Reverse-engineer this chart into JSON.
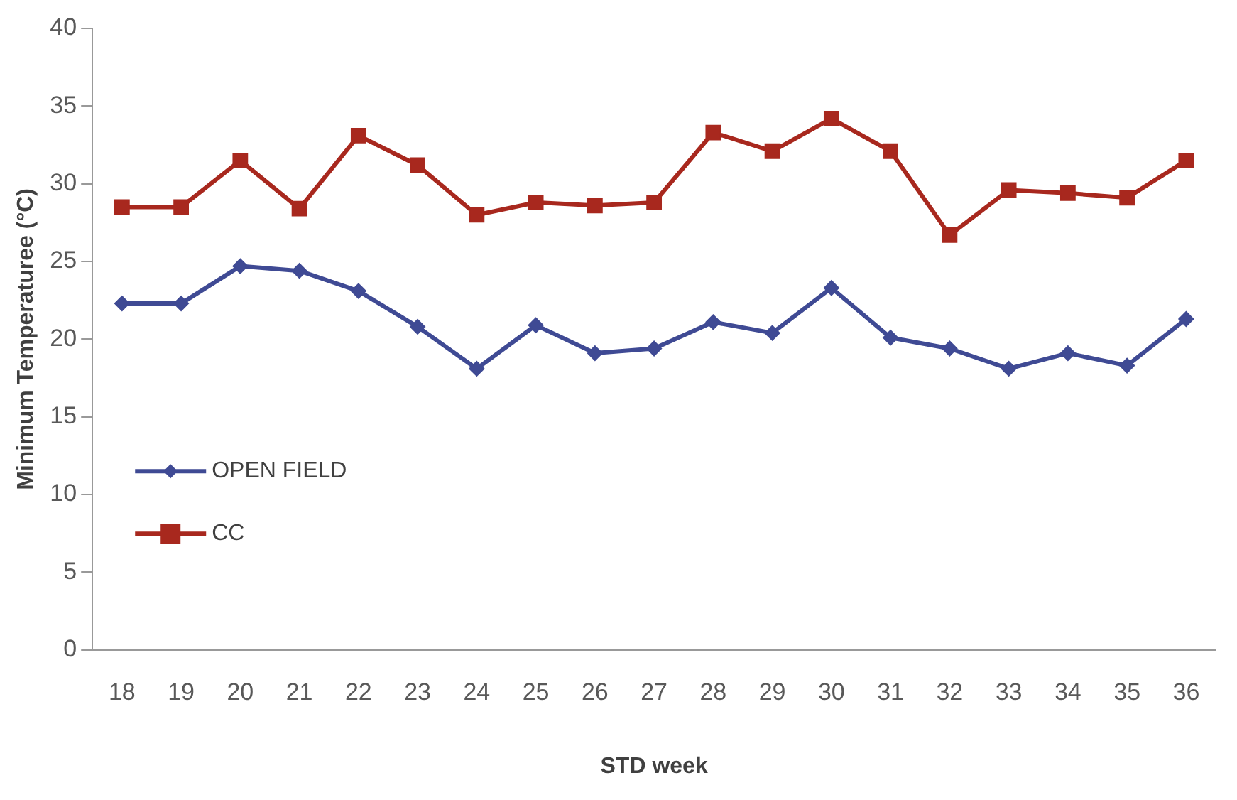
{
  "chart_data": {
    "type": "line",
    "xlabel": "STD week",
    "ylabel": "Minimum Temperaturee (°C)",
    "categories": [
      "18",
      "19",
      "20",
      "21",
      "22",
      "23",
      "24",
      "25",
      "26",
      "27",
      "28",
      "29",
      "30",
      "31",
      "32",
      "33",
      "34",
      "35",
      "36"
    ],
    "series": [
      {
        "name": "OPEN FIELD",
        "color": "#3f4a94",
        "marker": "diamond",
        "values": [
          22.3,
          22.3,
          24.7,
          24.4,
          23.1,
          20.8,
          18.1,
          20.9,
          19.1,
          19.4,
          21.1,
          20.4,
          23.3,
          20.1,
          19.4,
          18.1,
          19.1,
          18.3,
          21.3
        ]
      },
      {
        "name": "CC",
        "color": "#a8281e",
        "marker": "square",
        "values": [
          28.5,
          28.5,
          31.5,
          28.4,
          33.1,
          31.2,
          28.0,
          28.8,
          28.6,
          28.8,
          33.3,
          32.1,
          34.2,
          32.1,
          26.7,
          29.6,
          29.4,
          29.1,
          31.5
        ]
      }
    ],
    "ylim": [
      0,
      40
    ],
    "yticks": [
      0,
      5,
      10,
      15,
      20,
      25,
      30,
      35,
      40
    ],
    "grid": false,
    "legend": "left"
  }
}
